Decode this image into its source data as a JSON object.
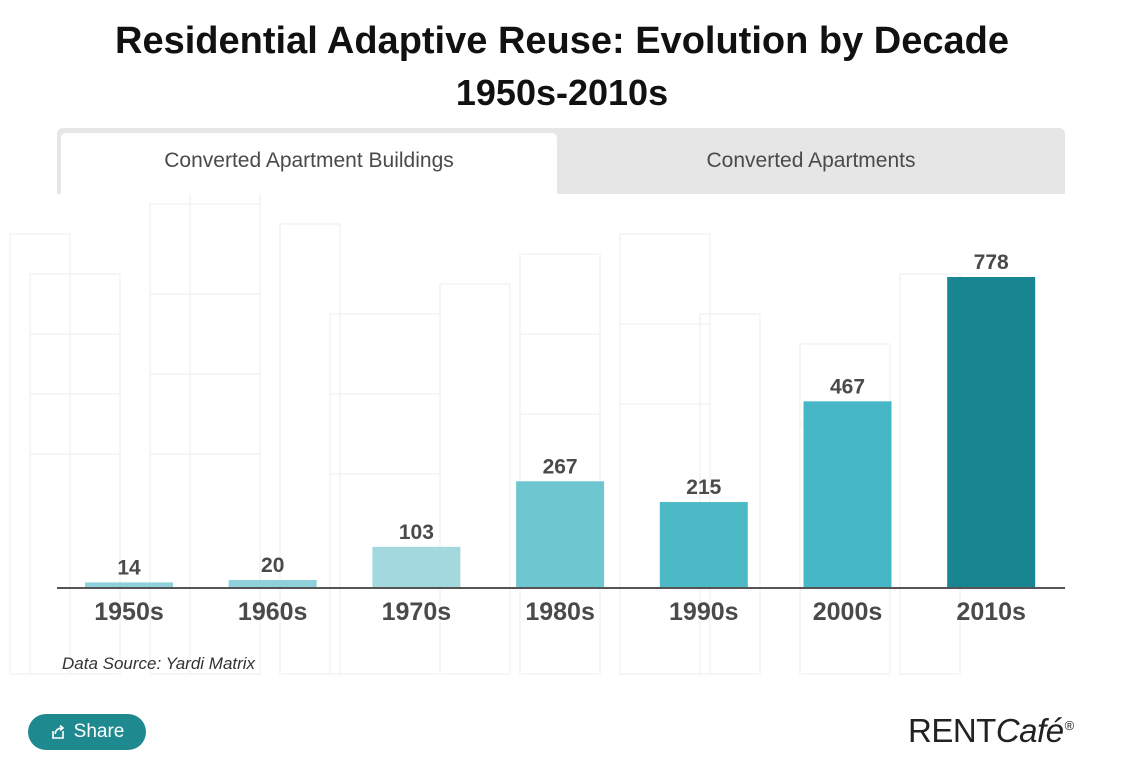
{
  "title": "Residential Adaptive Reuse: Evolution by Decade",
  "subtitle": "1950s-2010s",
  "tabs": [
    {
      "label": "Converted Apartment Buildings",
      "active": true
    },
    {
      "label": "Converted Apartments",
      "active": false
    }
  ],
  "source": "Data Source: Yardi Matrix",
  "share_label": "Share",
  "logo": {
    "rent": "RENT",
    "cafe": "Café",
    "reg": "®"
  },
  "chart_data": {
    "type": "bar",
    "categories": [
      "1950s",
      "1960s",
      "1970s",
      "1980s",
      "1990s",
      "2000s",
      "2010s"
    ],
    "values": [
      14,
      20,
      103,
      267,
      215,
      467,
      778
    ],
    "bar_colors": [
      "#8fd1da",
      "#8fd1da",
      "#a3d8df",
      "#6ec6d0",
      "#4bb9c6",
      "#45b7c6",
      "#178690"
    ],
    "ylim": [
      0,
      778
    ]
  }
}
